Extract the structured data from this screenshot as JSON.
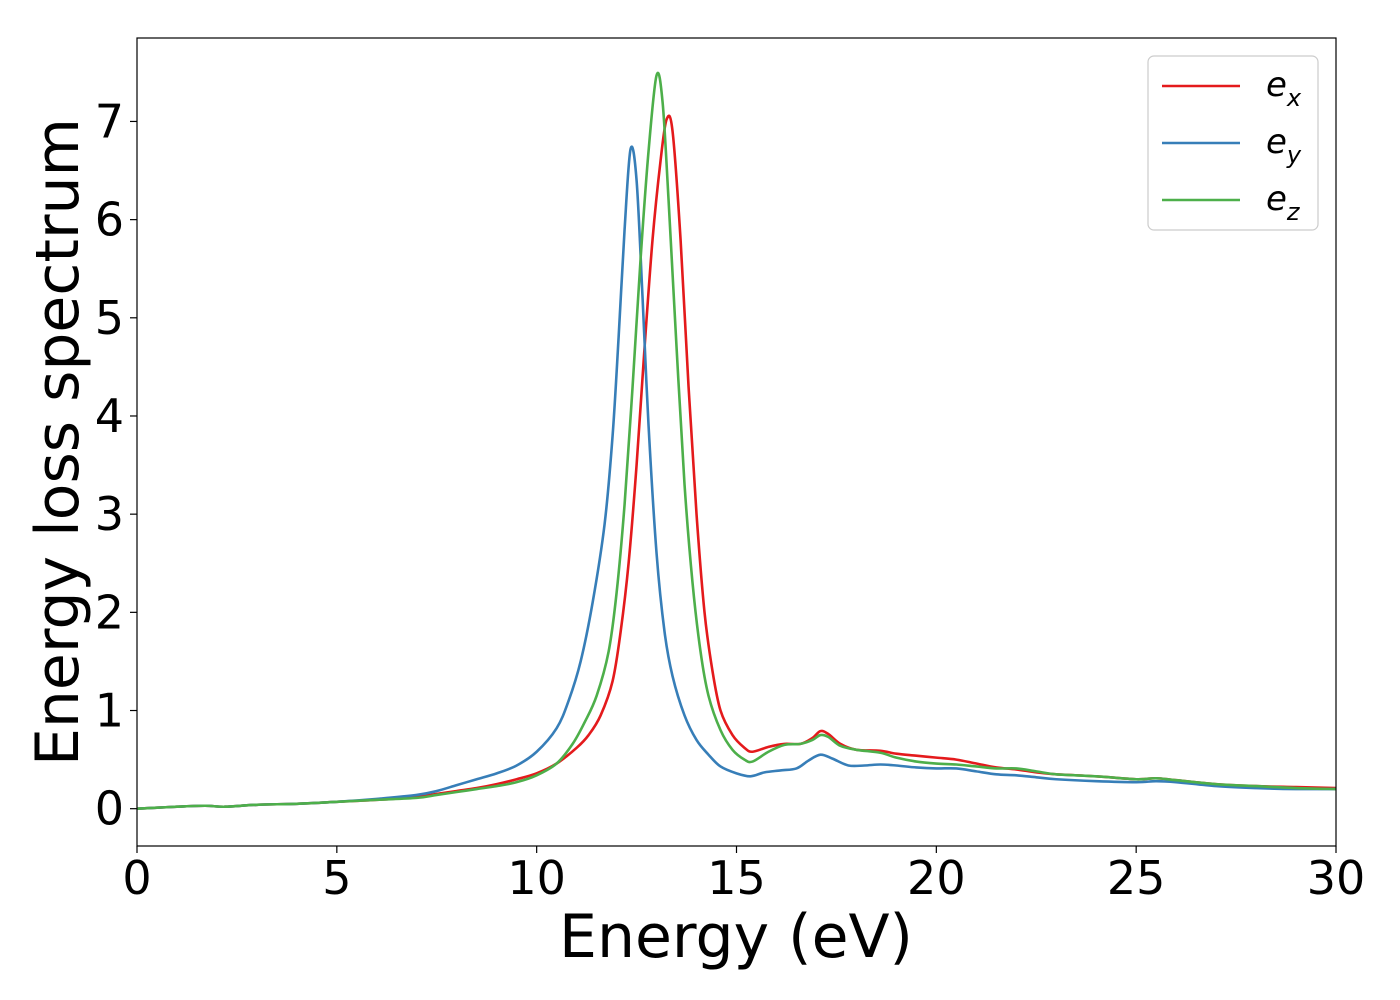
{
  "chart_data": {
    "type": "line",
    "title": "",
    "xlabel": "Energy (eV)",
    "ylabel": "Energy loss spectrum",
    "xlim": [
      0,
      30
    ],
    "ylim": [
      -0.38,
      7.85
    ],
    "xticks": [
      0,
      5,
      10,
      15,
      20,
      25,
      30
    ],
    "yticks": [
      0,
      1,
      2,
      3,
      4,
      5,
      6,
      7
    ],
    "grid": false,
    "legend_position": "top-right",
    "series": [
      {
        "name": "e_x",
        "label_base": "e",
        "label_sub": "x",
        "color": "#e41a1c",
        "points": [
          [
            0,
            0.0
          ],
          [
            0.5,
            0.01
          ],
          [
            1,
            0.02
          ],
          [
            1.7,
            0.03
          ],
          [
            2.2,
            0.02
          ],
          [
            3,
            0.04
          ],
          [
            4,
            0.05
          ],
          [
            5,
            0.07
          ],
          [
            6,
            0.09
          ],
          [
            7,
            0.12
          ],
          [
            7.5,
            0.15
          ],
          [
            8,
            0.18
          ],
          [
            8.5,
            0.21
          ],
          [
            9,
            0.25
          ],
          [
            9.5,
            0.3
          ],
          [
            10,
            0.36
          ],
          [
            10.5,
            0.46
          ],
          [
            11,
            0.62
          ],
          [
            11.3,
            0.75
          ],
          [
            11.6,
            0.95
          ],
          [
            11.9,
            1.3
          ],
          [
            12.1,
            1.8
          ],
          [
            12.3,
            2.5
          ],
          [
            12.5,
            3.5
          ],
          [
            12.7,
            4.7
          ],
          [
            12.9,
            5.8
          ],
          [
            13.1,
            6.6
          ],
          [
            13.25,
            7.02
          ],
          [
            13.4,
            6.9
          ],
          [
            13.6,
            5.8
          ],
          [
            13.8,
            4.3
          ],
          [
            14,
            3.0
          ],
          [
            14.2,
            2.0
          ],
          [
            14.4,
            1.4
          ],
          [
            14.6,
            1.0
          ],
          [
            14.9,
            0.75
          ],
          [
            15.2,
            0.62
          ],
          [
            15.4,
            0.58
          ],
          [
            15.8,
            0.63
          ],
          [
            16.2,
            0.66
          ],
          [
            16.6,
            0.66
          ],
          [
            16.9,
            0.72
          ],
          [
            17.1,
            0.79
          ],
          [
            17.3,
            0.76
          ],
          [
            17.6,
            0.66
          ],
          [
            18,
            0.6
          ],
          [
            18.6,
            0.59
          ],
          [
            19,
            0.56
          ],
          [
            19.5,
            0.54
          ],
          [
            20,
            0.52
          ],
          [
            20.5,
            0.5
          ],
          [
            21,
            0.46
          ],
          [
            21.5,
            0.42
          ],
          [
            22,
            0.4
          ],
          [
            22.5,
            0.37
          ],
          [
            23,
            0.35
          ],
          [
            24,
            0.33
          ],
          [
            25,
            0.3
          ],
          [
            25.5,
            0.31
          ],
          [
            26,
            0.29
          ],
          [
            27,
            0.25
          ],
          [
            28,
            0.23
          ],
          [
            29,
            0.22
          ],
          [
            30,
            0.21
          ]
        ]
      },
      {
        "name": "e_y",
        "label_base": "e",
        "label_sub": "y",
        "color": "#377eb8",
        "points": [
          [
            0,
            0.0
          ],
          [
            0.5,
            0.01
          ],
          [
            1,
            0.02
          ],
          [
            1.7,
            0.03
          ],
          [
            2.2,
            0.02
          ],
          [
            3,
            0.04
          ],
          [
            4,
            0.05
          ],
          [
            5,
            0.07
          ],
          [
            6,
            0.1
          ],
          [
            7,
            0.14
          ],
          [
            7.5,
            0.18
          ],
          [
            8,
            0.24
          ],
          [
            8.5,
            0.3
          ],
          [
            9,
            0.36
          ],
          [
            9.5,
            0.44
          ],
          [
            10,
            0.58
          ],
          [
            10.5,
            0.82
          ],
          [
            10.8,
            1.1
          ],
          [
            11.1,
            1.5
          ],
          [
            11.4,
            2.1
          ],
          [
            11.7,
            2.9
          ],
          [
            11.9,
            3.8
          ],
          [
            12.05,
            4.8
          ],
          [
            12.2,
            5.9
          ],
          [
            12.35,
            6.72
          ],
          [
            12.5,
            6.4
          ],
          [
            12.65,
            5.2
          ],
          [
            12.8,
            3.9
          ],
          [
            13,
            2.6
          ],
          [
            13.2,
            1.8
          ],
          [
            13.4,
            1.35
          ],
          [
            13.7,
            0.95
          ],
          [
            14,
            0.7
          ],
          [
            14.3,
            0.55
          ],
          [
            14.6,
            0.43
          ],
          [
            15,
            0.36
          ],
          [
            15.35,
            0.33
          ],
          [
            15.7,
            0.37
          ],
          [
            16.1,
            0.39
          ],
          [
            16.5,
            0.41
          ],
          [
            16.8,
            0.49
          ],
          [
            17.1,
            0.55
          ],
          [
            17.4,
            0.51
          ],
          [
            17.8,
            0.44
          ],
          [
            18.2,
            0.44
          ],
          [
            18.6,
            0.45
          ],
          [
            19,
            0.44
          ],
          [
            19.5,
            0.42
          ],
          [
            20,
            0.41
          ],
          [
            20.5,
            0.41
          ],
          [
            21,
            0.38
          ],
          [
            21.5,
            0.35
          ],
          [
            22,
            0.34
          ],
          [
            22.5,
            0.32
          ],
          [
            23,
            0.3
          ],
          [
            24,
            0.28
          ],
          [
            25,
            0.27
          ],
          [
            25.5,
            0.28
          ],
          [
            26,
            0.27
          ],
          [
            27,
            0.23
          ],
          [
            28,
            0.21
          ],
          [
            29,
            0.2
          ],
          [
            30,
            0.2
          ]
        ]
      },
      {
        "name": "e_z",
        "label_base": "e",
        "label_sub": "z",
        "color": "#4daf4a",
        "points": [
          [
            0,
            0.0
          ],
          [
            0.5,
            0.01
          ],
          [
            1,
            0.02
          ],
          [
            1.7,
            0.03
          ],
          [
            2.2,
            0.02
          ],
          [
            3,
            0.04
          ],
          [
            4,
            0.05
          ],
          [
            5,
            0.07
          ],
          [
            6,
            0.09
          ],
          [
            7,
            0.11
          ],
          [
            7.5,
            0.14
          ],
          [
            8,
            0.17
          ],
          [
            8.5,
            0.2
          ],
          [
            9,
            0.23
          ],
          [
            9.5,
            0.27
          ],
          [
            10,
            0.34
          ],
          [
            10.5,
            0.46
          ],
          [
            10.9,
            0.66
          ],
          [
            11.2,
            0.88
          ],
          [
            11.5,
            1.15
          ],
          [
            11.8,
            1.6
          ],
          [
            12,
            2.2
          ],
          [
            12.2,
            3.1
          ],
          [
            12.4,
            4.3
          ],
          [
            12.6,
            5.6
          ],
          [
            12.8,
            6.7
          ],
          [
            13,
            7.47
          ],
          [
            13.15,
            7.2
          ],
          [
            13.3,
            6.2
          ],
          [
            13.5,
            4.7
          ],
          [
            13.7,
            3.3
          ],
          [
            13.9,
            2.3
          ],
          [
            14.1,
            1.6
          ],
          [
            14.3,
            1.15
          ],
          [
            14.6,
            0.8
          ],
          [
            14.9,
            0.6
          ],
          [
            15.2,
            0.5
          ],
          [
            15.4,
            0.48
          ],
          [
            15.8,
            0.58
          ],
          [
            16.2,
            0.65
          ],
          [
            16.6,
            0.66
          ],
          [
            16.9,
            0.7
          ],
          [
            17.1,
            0.75
          ],
          [
            17.3,
            0.73
          ],
          [
            17.6,
            0.64
          ],
          [
            18,
            0.6
          ],
          [
            18.6,
            0.57
          ],
          [
            19,
            0.52
          ],
          [
            19.5,
            0.48
          ],
          [
            20,
            0.46
          ],
          [
            20.5,
            0.45
          ],
          [
            21,
            0.43
          ],
          [
            21.5,
            0.41
          ],
          [
            22,
            0.41
          ],
          [
            22.5,
            0.38
          ],
          [
            23,
            0.35
          ],
          [
            24,
            0.33
          ],
          [
            25,
            0.3
          ],
          [
            25.5,
            0.31
          ],
          [
            26,
            0.29
          ],
          [
            27,
            0.25
          ],
          [
            28,
            0.23
          ],
          [
            29,
            0.21
          ],
          [
            30,
            0.2
          ]
        ]
      }
    ]
  }
}
